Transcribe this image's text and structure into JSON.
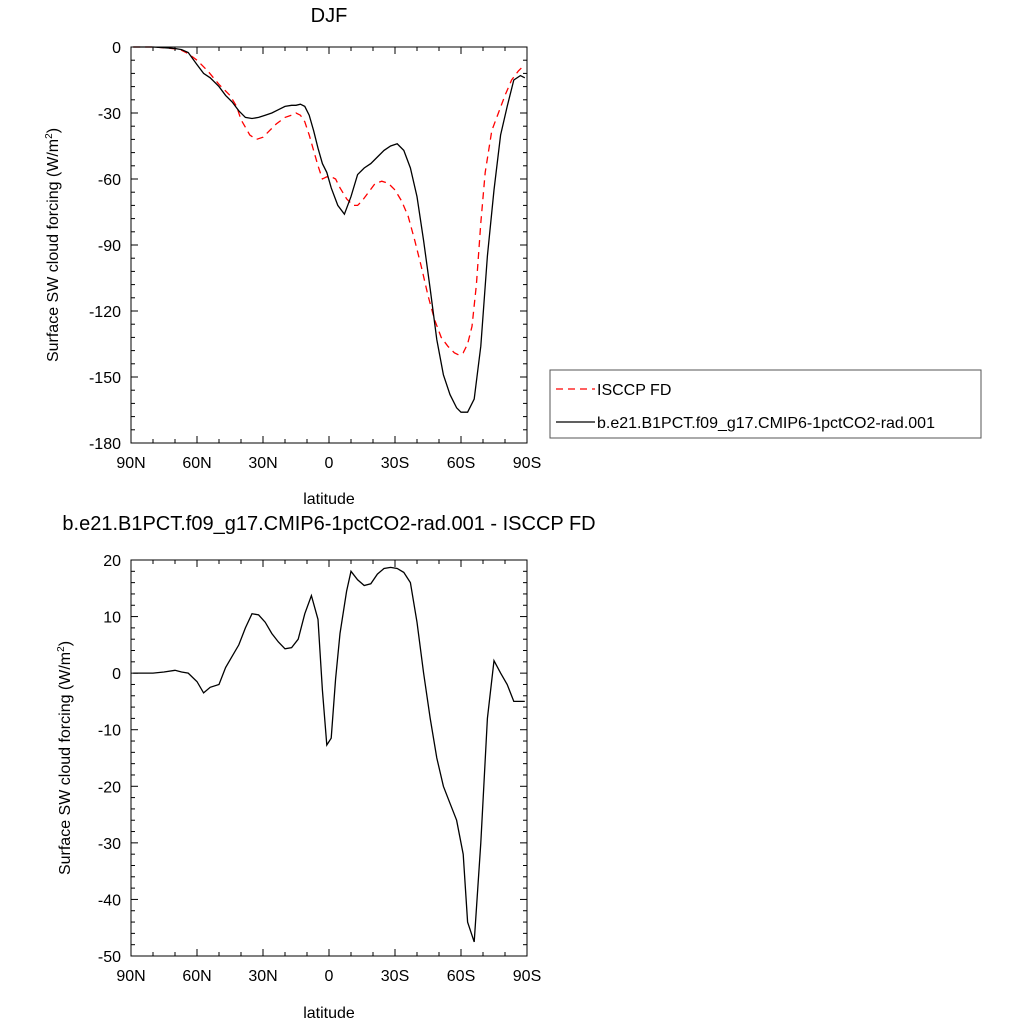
{
  "chart_data": [
    {
      "type": "line",
      "title": "DJF",
      "xlabel": "latitude",
      "ylabel": "Surface SW cloud forcing (W/m²)",
      "ylabel_main": "Surface SW cloud forcing (W/m",
      "ylabel_sup": "2",
      "ylabel_tail": ")",
      "xlim": [
        90,
        -90
      ],
      "ylim": [
        -180,
        0
      ],
      "xticks": [
        90,
        60,
        30,
        0,
        -30,
        -60,
        -90
      ],
      "xtick_labels": [
        "90N",
        "60N",
        "30N",
        "0",
        "30S",
        "60S",
        "90S"
      ],
      "yticks": [
        0,
        -30,
        -60,
        -90,
        -120,
        -150,
        -180
      ],
      "ytick_labels": [
        "0",
        "-30",
        "-60",
        "-90",
        "-120",
        "-150",
        "-180"
      ],
      "legend": {
        "placement": "right",
        "entries": [
          {
            "label": "ISCCP FD",
            "color": "#ff0000",
            "dash": "dashed"
          },
          {
            "label": "b.e21.B1PCT.f09_g17.CMIP6-1pctCO2-rad.001",
            "color": "#000000",
            "dash": "solid"
          }
        ]
      },
      "series": [
        {
          "name": "ISCCP FD",
          "color": "#ff0000",
          "dash": "dashed",
          "x": [
            89,
            85,
            80,
            75,
            70,
            67,
            64,
            60,
            55,
            50,
            45,
            42,
            40,
            36,
            33,
            30,
            27,
            24,
            20,
            17,
            15,
            13,
            11,
            9,
            7,
            5,
            3,
            1,
            -1,
            -3,
            -5,
            -8,
            -11,
            -13,
            -15,
            -18,
            -21,
            -24,
            -27,
            -30,
            -33,
            -36,
            -39,
            -42,
            -45,
            -48,
            -51,
            -54,
            -57,
            -59,
            -61,
            -63,
            -65,
            -67,
            -69,
            -71,
            -74,
            -77,
            -80,
            -83,
            -86,
            -89
          ],
          "y": [
            0,
            0,
            0,
            -0.3,
            -0.8,
            -1.5,
            -3,
            -6,
            -11,
            -17,
            -22,
            -27,
            -33,
            -40,
            -42,
            -41,
            -38,
            -35,
            -32,
            -31,
            -30,
            -31,
            -34,
            -40,
            -47,
            -54,
            -60,
            -59,
            -59,
            -60,
            -64,
            -69,
            -72,
            -72,
            -70,
            -66,
            -62,
            -61,
            -62,
            -65,
            -70,
            -77,
            -88,
            -100,
            -113,
            -124,
            -132,
            -136,
            -139,
            -140,
            -139,
            -135,
            -127,
            -108,
            -80,
            -57,
            -38,
            -30,
            -22,
            -15,
            -11,
            -8
          ]
        },
        {
          "name": "b.e21.B1PCT.f09_g17.CMIP6-1pctCO2-rad.001",
          "color": "#000000",
          "dash": "solid",
          "x": [
            89,
            85,
            80,
            75,
            70,
            67,
            64,
            60,
            57,
            54,
            50,
            47,
            44,
            41,
            38,
            35,
            32,
            29,
            26,
            23,
            20,
            17,
            15,
            13,
            11,
            9,
            7,
            5,
            3,
            1,
            -1,
            -4,
            -7,
            -10,
            -13,
            -16,
            -19,
            -22,
            -25,
            -28,
            -31,
            -34,
            -37,
            -40,
            -43,
            -46,
            -49,
            -52,
            -55,
            -58,
            -60,
            -63,
            -66,
            -69,
            -72,
            -75,
            -78,
            -81,
            -84,
            -87,
            -89
          ],
          "y": [
            0,
            0,
            0,
            -0.3,
            -0.7,
            -1.2,
            -2.5,
            -8,
            -12,
            -14,
            -18,
            -22,
            -25,
            -29,
            -32,
            -32.5,
            -32,
            -31,
            -30,
            -28.5,
            -27,
            -26.5,
            -26.5,
            -26,
            -27,
            -31,
            -38,
            -46,
            -53,
            -57,
            -64,
            -72,
            -76,
            -68,
            -58,
            -55,
            -53,
            -50,
            -47,
            -45,
            -44,
            -47,
            -55,
            -68,
            -88,
            -110,
            -133,
            -149,
            -158,
            -164,
            -166,
            -166,
            -160,
            -136,
            -95,
            -65,
            -40,
            -27,
            -15,
            -13,
            -14
          ]
        }
      ]
    },
    {
      "type": "line",
      "title": "b.e21.B1PCT.f09_g17.CMIP6-1pctCO2-rad.001 - ISCCP FD",
      "xlabel": "latitude",
      "ylabel": "Surface SW cloud forcing (W/m²)",
      "ylabel_main": "Surface SW cloud forcing (W/m",
      "ylabel_sup": "2",
      "ylabel_tail": ")",
      "xlim": [
        90,
        -90
      ],
      "ylim": [
        -50,
        20
      ],
      "xticks": [
        90,
        60,
        30,
        0,
        -30,
        -60,
        -90
      ],
      "xtick_labels": [
        "90N",
        "60N",
        "30N",
        "0",
        "30S",
        "60S",
        "90S"
      ],
      "yticks": [
        20,
        10,
        0,
        -10,
        -20,
        -30,
        -40,
        -50
      ],
      "ytick_labels": [
        "20",
        "10",
        "0",
        "-10",
        "-20",
        "-30",
        "-40",
        "-50"
      ],
      "series": [
        {
          "color": "#000000",
          "dash": "solid",
          "x": [
            89,
            80,
            75,
            70,
            67,
            64,
            60,
            57,
            54,
            50,
            47,
            44,
            41,
            38,
            35,
            32,
            29,
            26,
            23,
            20,
            17,
            14,
            11,
            8,
            5,
            3,
            1,
            -1,
            -3,
            -5,
            -8,
            -10,
            -13,
            -16,
            -19,
            -22,
            -25,
            -28,
            -31,
            -34,
            -37,
            -40,
            -43,
            -46,
            -49,
            -52,
            -55,
            -58,
            -61,
            -63,
            -66,
            -69,
            -72,
            -75,
            -78,
            -81,
            -84,
            -87,
            -89
          ],
          "y": [
            0,
            0,
            0.2,
            0.5,
            0.2,
            0,
            -1.5,
            -3.5,
            -2.5,
            -2,
            1,
            3,
            5,
            8,
            10.5,
            10.3,
            9,
            7,
            5.5,
            4.3,
            4.5,
            6,
            10.5,
            13.7,
            9.5,
            -3,
            -12.7,
            -11.5,
            -1,
            7,
            14.5,
            18,
            16.5,
            15.5,
            15.8,
            17.5,
            18.5,
            18.7,
            18.5,
            17.8,
            16,
            9,
            0,
            -8,
            -15,
            -20,
            -23,
            -26,
            -32,
            -44,
            -47.5,
            -30,
            -8,
            2.2,
            0,
            -2,
            -5,
            -5,
            -5
          ]
        }
      ]
    }
  ]
}
